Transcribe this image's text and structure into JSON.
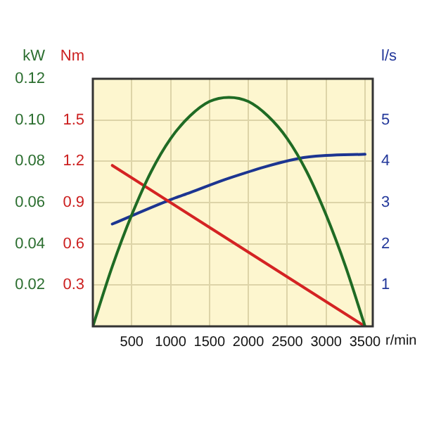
{
  "chart_data": {
    "type": "line",
    "xlabel": "r/min",
    "ylabel": "kW",
    "y2label": "Nm",
    "y3label": "l/s",
    "xlim": [
      0,
      3600
    ],
    "xticks": [
      500,
      1000,
      1500,
      2000,
      2500,
      3000,
      3500
    ],
    "ylim": [
      0,
      0.12
    ],
    "yticks": [
      0.02,
      0.04,
      0.06,
      0.08,
      {
        "value": 0.1,
        "label": "0.10"
      },
      0.12
    ],
    "y2lim": [
      0,
      1.8
    ],
    "y2ticks": [
      0.3,
      0.6,
      0.9,
      1.2,
      1.5
    ],
    "y3lim": [
      0,
      6
    ],
    "y3ticks": [
      1,
      2,
      3,
      4,
      5
    ],
    "grid": true,
    "legend": false,
    "marker": "none",
    "line_style": "solid",
    "series": [
      {
        "color": "#1f6b24",
        "axis": "y",
        "x": [
          0,
          250,
          500,
          750,
          1000,
          1250,
          1500,
          1750,
          2000,
          2250,
          2500,
          2750,
          3000,
          3250,
          3500
        ],
        "values": [
          0,
          0.029,
          0.054,
          0.075,
          0.091,
          0.102,
          0.109,
          0.111,
          0.109,
          0.102,
          0.091,
          0.075,
          0.054,
          0.029,
          0
        ]
      },
      {
        "color": "#d42323",
        "axis": "y2",
        "x": [
          250,
          3500
        ],
        "values": [
          1.17,
          0
        ]
      },
      {
        "color": "#1c3591",
        "axis": "y3",
        "x": [
          250,
          1000,
          1250,
          1750,
          2650,
          3000,
          3500
        ],
        "values": [
          2.48,
          3.07,
          3.24,
          3.59,
          4.07,
          4.14,
          4.17
        ]
      }
    ]
  }
}
